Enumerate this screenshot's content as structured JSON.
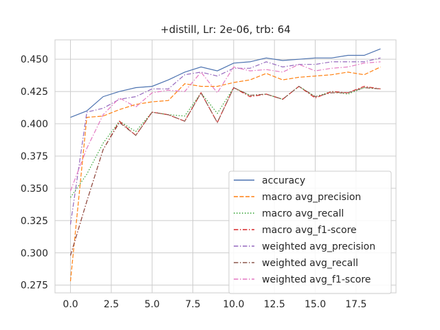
{
  "chart_data": {
    "type": "line",
    "title": "+distill, Lr: 2e-06, trb: 64",
    "xlabel": "",
    "ylabel": "",
    "xlim": [
      -0.95,
      19.95
    ],
    "ylim": [
      0.269,
      0.465
    ],
    "xticks": [
      0.0,
      2.5,
      5.0,
      7.5,
      10.0,
      12.5,
      15.0,
      17.5
    ],
    "xtick_labels": [
      "0.0",
      "2.5",
      "5.0",
      "7.5",
      "10.0",
      "12.5",
      "15.0",
      "17.5"
    ],
    "yticks": [
      0.275,
      0.3,
      0.325,
      0.35,
      0.375,
      0.4,
      0.425,
      0.45
    ],
    "ytick_labels": [
      "0.275",
      "0.300",
      "0.325",
      "0.350",
      "0.375",
      "0.400",
      "0.425",
      "0.450"
    ],
    "grid": true,
    "legend_position": "lower-right",
    "x": [
      0,
      1,
      2,
      3,
      4,
      5,
      6,
      7,
      8,
      9,
      10,
      11,
      12,
      13,
      14,
      15,
      16,
      17,
      18,
      19
    ],
    "series": [
      {
        "name": "accuracy",
        "color": "#4c72b0",
        "dash": "solid",
        "values": [
          0.405,
          0.41,
          0.421,
          0.425,
          0.428,
          0.429,
          0.434,
          0.44,
          0.444,
          0.441,
          0.447,
          0.448,
          0.451,
          0.449,
          0.45,
          0.451,
          0.451,
          0.453,
          0.453,
          0.458
        ]
      },
      {
        "name": "macro avg_precision",
        "color": "#ff7f0e",
        "dash": "dashed",
        "values": [
          0.278,
          0.405,
          0.406,
          0.411,
          0.415,
          0.417,
          0.418,
          0.431,
          0.429,
          0.429,
          0.432,
          0.434,
          0.439,
          0.434,
          0.436,
          0.437,
          0.438,
          0.44,
          0.438,
          0.444
        ]
      },
      {
        "name": "macro avg_recall",
        "color": "#2ca02c",
        "dash": "dotted",
        "values": [
          0.343,
          0.361,
          0.385,
          0.402,
          0.394,
          0.409,
          0.407,
          0.406,
          0.424,
          0.408,
          0.428,
          0.422,
          0.423,
          0.419,
          0.429,
          0.421,
          0.425,
          0.423,
          0.428,
          0.427
        ]
      },
      {
        "name": "macro avg_f1-score",
        "color": "#d62728",
        "dash": "dashdot",
        "values": [
          0.298,
          0.34,
          0.38,
          0.402,
          0.391,
          0.409,
          0.407,
          0.402,
          0.424,
          0.401,
          0.428,
          0.421,
          0.423,
          0.419,
          0.429,
          0.42,
          0.425,
          0.424,
          0.429,
          0.427
        ]
      },
      {
        "name": "weighted avg_precision",
        "color": "#9467bd",
        "dash": "dashdot",
        "values": [
          0.322,
          0.409,
          0.412,
          0.419,
          0.421,
          0.427,
          0.427,
          0.438,
          0.44,
          0.437,
          0.443,
          0.443,
          0.448,
          0.444,
          0.446,
          0.446,
          0.448,
          0.448,
          0.448,
          0.451
        ]
      },
      {
        "name": "weighted avg_recall",
        "color": "#8c564b",
        "dash": "dashdot",
        "values": [
          0.298,
          0.34,
          0.38,
          0.401,
          0.391,
          0.409,
          0.407,
          0.402,
          0.424,
          0.401,
          0.428,
          0.422,
          0.423,
          0.419,
          0.429,
          0.421,
          0.424,
          0.424,
          0.428,
          0.427
        ]
      },
      {
        "name": "weighted avg_f1-score",
        "color": "#e377c2",
        "dash": "dashdot",
        "values": [
          0.348,
          0.381,
          0.407,
          0.42,
          0.413,
          0.424,
          0.426,
          0.425,
          0.44,
          0.424,
          0.444,
          0.441,
          0.442,
          0.44,
          0.446,
          0.441,
          0.443,
          0.444,
          0.447,
          0.448
        ]
      }
    ]
  }
}
